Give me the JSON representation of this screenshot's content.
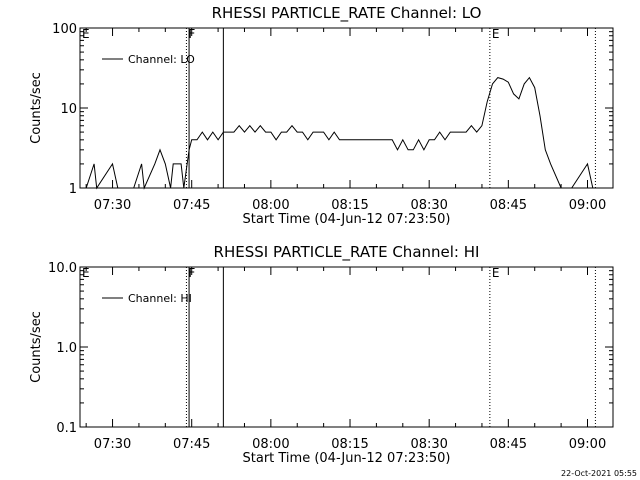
{
  "footer_timestamp": "22-Oct-2021 05:55",
  "chart_data": [
    {
      "type": "line",
      "title": "RHESSI PARTICLE_RATE Channel: LO",
      "xlabel": "Start Time (04-Jun-12 07:23:50)",
      "ylabel": "Counts/sec",
      "y_scale": "log",
      "xlim": [
        "07:23:50",
        "09:04:50"
      ],
      "ylim": [
        1,
        100
      ],
      "x_ticks": [
        "07:30",
        "07:45",
        "08:00",
        "08:15",
        "08:30",
        "08:45",
        "09:00"
      ],
      "y_ticks": [
        "1",
        "10",
        "100"
      ],
      "legend": {
        "label": "Channel: LO",
        "position": "top-left"
      },
      "markers": [
        {
          "time": "07:23:50",
          "label": "E",
          "style": "dotted"
        },
        {
          "time": "07:44:00",
          "label": "F",
          "style": "dotted"
        },
        {
          "time": "07:44:30",
          "label": "",
          "style": "solid"
        },
        {
          "time": "07:51:00",
          "label": "",
          "style": "solid"
        },
        {
          "time": "08:41:30",
          "label": "E",
          "style": "dotted"
        },
        {
          "time": "09:01:30",
          "label": "",
          "style": "dotted"
        }
      ],
      "series": [
        {
          "name": "Channel: LO",
          "x": [
            "07:25:00",
            "07:26:30",
            "07:27:00",
            "07:30:00",
            "07:31:00",
            "07:32:00",
            "07:34:00",
            "07:35:30",
            "07:36:00",
            "07:38:00",
            "07:39:00",
            "07:40:00",
            "07:41:00",
            "07:41:30",
            "07:42:30",
            "07:43:00",
            "07:43:30",
            "07:44:30",
            "07:45:00",
            "07:46:00",
            "07:47:00",
            "07:48:00",
            "07:49:00",
            "07:50:00",
            "07:51:00",
            "07:52:00",
            "07:53:00",
            "07:54:00",
            "07:55:00",
            "07:56:00",
            "07:57:00",
            "07:58:00",
            "07:59:00",
            "08:00:00",
            "08:01:00",
            "08:02:00",
            "08:03:00",
            "08:04:00",
            "08:05:00",
            "08:06:00",
            "08:07:00",
            "08:08:00",
            "08:09:00",
            "08:10:00",
            "08:11:00",
            "08:12:00",
            "08:13:00",
            "08:14:00",
            "08:15:00",
            "08:16:00",
            "08:17:00",
            "08:18:00",
            "08:19:00",
            "08:20:00",
            "08:21:00",
            "08:22:00",
            "08:23:00",
            "08:24:00",
            "08:25:00",
            "08:26:00",
            "08:27:00",
            "08:28:00",
            "08:29:00",
            "08:30:00",
            "08:31:00",
            "08:32:00",
            "08:33:00",
            "08:34:00",
            "08:35:00",
            "08:36:00",
            "08:37:00",
            "08:38:00",
            "08:39:00",
            "08:40:00",
            "08:41:00",
            "08:42:00",
            "08:43:00",
            "08:44:00",
            "08:45:00",
            "08:46:00",
            "08:47:00",
            "08:48:00",
            "08:49:00",
            "08:50:00",
            "08:51:00",
            "08:52:00",
            "08:53:00",
            "08:55:00",
            "08:57:00",
            "09:00:00",
            "09:01:00",
            "09:02:00"
          ],
          "values": [
            1,
            2,
            1,
            2,
            1,
            1,
            1,
            2,
            1,
            2,
            3,
            2,
            1,
            2,
            2,
            2,
            1,
            3,
            4,
            4,
            5,
            4,
            5,
            4,
            5,
            5,
            5,
            6,
            5,
            6,
            5,
            6,
            5,
            5,
            4,
            5,
            5,
            6,
            5,
            5,
            4,
            5,
            5,
            5,
            4,
            5,
            4,
            4,
            4,
            4,
            4,
            4,
            4,
            4,
            4,
            4,
            4,
            3,
            4,
            3,
            3,
            4,
            3,
            4,
            4,
            5,
            4,
            5,
            5,
            5,
            5,
            6,
            5,
            6,
            12,
            20,
            24,
            23,
            21,
            15,
            13,
            20,
            24,
            18,
            8,
            3,
            2,
            1,
            1,
            2,
            1,
            1
          ]
        }
      ]
    },
    {
      "type": "line",
      "title": "RHESSI PARTICLE_RATE Channel: HI",
      "xlabel": "Start Time (04-Jun-12 07:23:50)",
      "ylabel": "Counts/sec",
      "y_scale": "log",
      "xlim": [
        "07:23:50",
        "09:04:50"
      ],
      "ylim": [
        0.1,
        10
      ],
      "x_ticks": [
        "07:30",
        "07:45",
        "08:00",
        "08:15",
        "08:30",
        "08:45",
        "09:00"
      ],
      "y_ticks": [
        "0.1",
        "1.0",
        "10.0"
      ],
      "legend": {
        "label": "Channel: HI",
        "position": "top-left"
      },
      "markers": [
        {
          "time": "07:23:50",
          "label": "E",
          "style": "dotted"
        },
        {
          "time": "07:44:00",
          "label": "F",
          "style": "dotted"
        },
        {
          "time": "07:44:30",
          "label": "",
          "style": "solid"
        },
        {
          "time": "07:51:00",
          "label": "",
          "style": "solid"
        },
        {
          "time": "08:41:30",
          "label": "E",
          "style": "dotted"
        },
        {
          "time": "09:01:30",
          "label": "",
          "style": "dotted"
        }
      ],
      "series": [
        {
          "name": "Channel: HI",
          "x": [],
          "values": []
        }
      ]
    }
  ]
}
